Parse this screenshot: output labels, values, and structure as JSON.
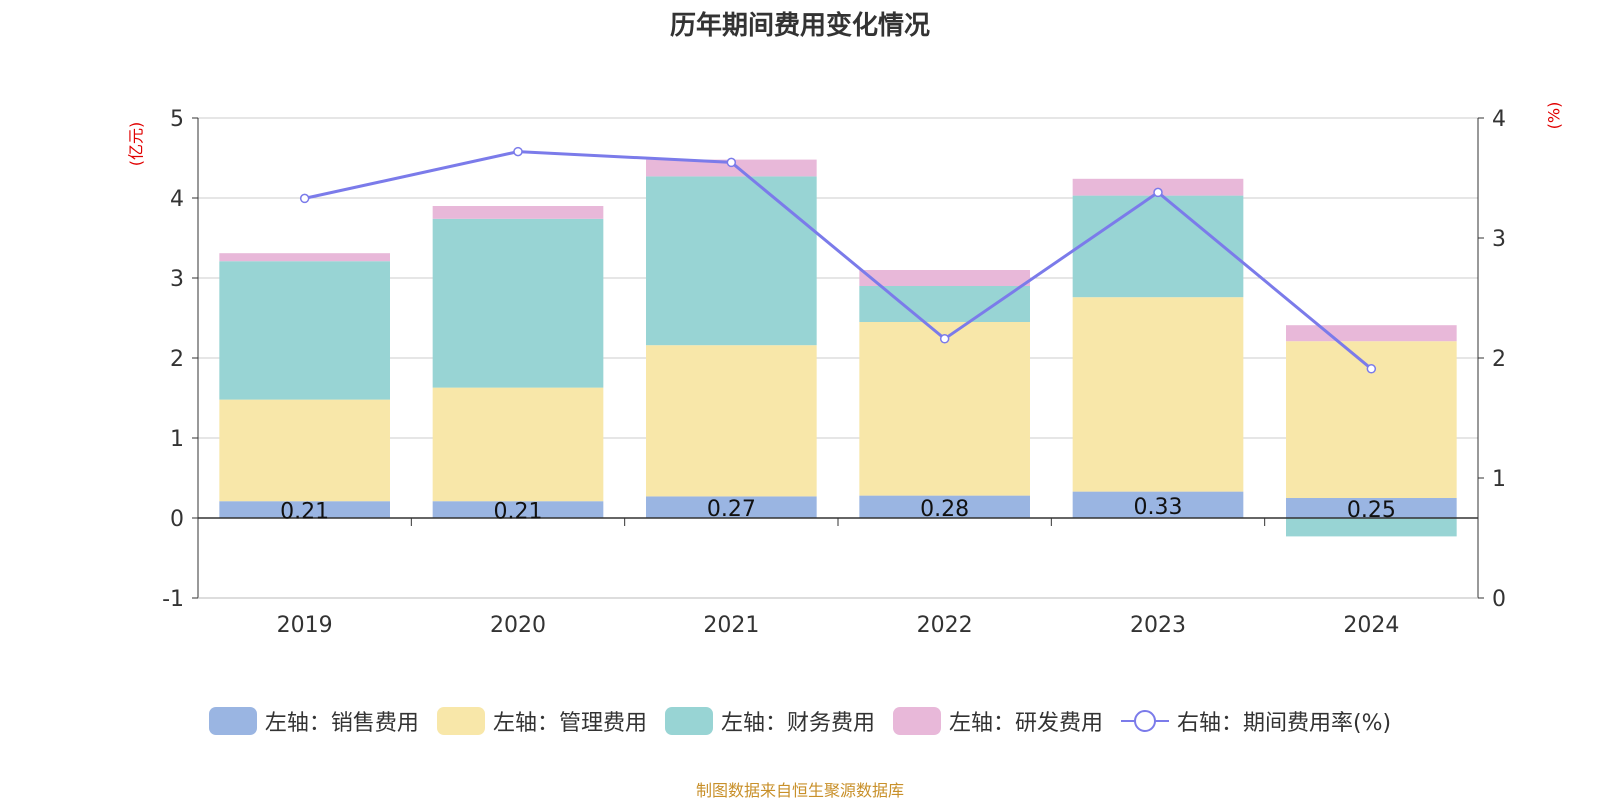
{
  "chart_data": {
    "type": "bar",
    "title": "历年期间费用变化情况",
    "left_unit": "(亿元)",
    "right_unit": "(%)",
    "categories": [
      "2019",
      "2020",
      "2021",
      "2022",
      "2023",
      "2024"
    ],
    "left_axis": {
      "ylim": [
        -1,
        5
      ],
      "ticks": [
        -1,
        0,
        1,
        2,
        3,
        4,
        5
      ]
    },
    "right_axis": {
      "ylim": [
        0,
        4
      ],
      "ticks": [
        0,
        1,
        2,
        3,
        4
      ]
    },
    "series": [
      {
        "name": "左轴：销售费用",
        "type": "bar",
        "axis": "left",
        "color": "#9ab5e2",
        "values": [
          0.21,
          0.21,
          0.27,
          0.28,
          0.33,
          0.25
        ],
        "show_labels": true
      },
      {
        "name": "左轴：管理费用",
        "type": "bar",
        "axis": "left",
        "color": "#f8e7a9",
        "values": [
          1.27,
          1.42,
          1.89,
          2.17,
          2.43,
          1.96
        ]
      },
      {
        "name": "左轴：财务费用",
        "type": "bar",
        "axis": "left",
        "color": "#98d4d4",
        "values": [
          1.73,
          2.11,
          2.11,
          0.45,
          1.27,
          -0.23
        ]
      },
      {
        "name": "左轴：研发费用",
        "type": "bar",
        "axis": "left",
        "color": "#e8b8d9",
        "values": [
          0.1,
          0.16,
          0.21,
          0.2,
          0.21,
          0.2
        ]
      },
      {
        "name": "右轴：期间费用率(%)",
        "type": "line",
        "axis": "right",
        "color": "#7b7bea",
        "values": [
          3.33,
          3.72,
          3.63,
          2.16,
          3.38,
          1.91
        ]
      }
    ],
    "grid": true,
    "legend_position": "bottom",
    "source": "制图数据来自恒生聚源数据库"
  }
}
